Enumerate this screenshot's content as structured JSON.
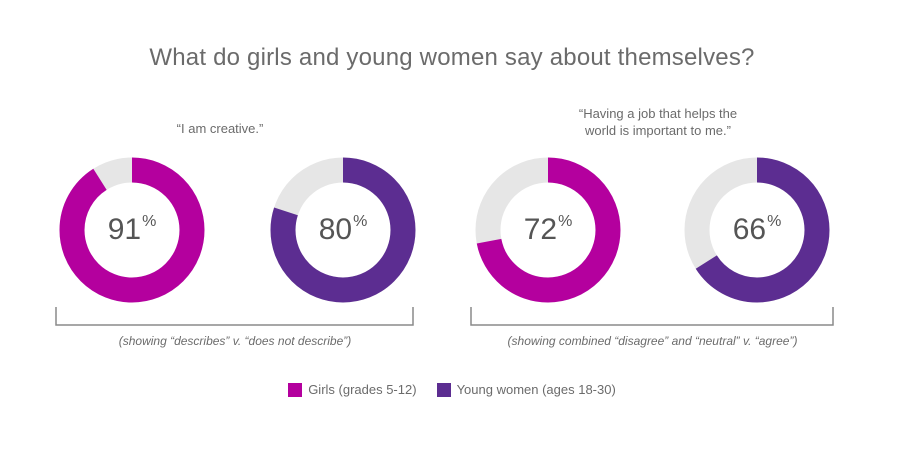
{
  "chart_data": {
    "type": "pie",
    "title": "What do girls and young women say about themselves?",
    "groups": [
      {
        "quote": "“I am creative.”",
        "note": "(showing “describes” v. “does not describe”)",
        "donuts": [
          {
            "series": "Girls (grades 5-12)",
            "value": 91,
            "label": "91",
            "color": "#b4009e"
          },
          {
            "series": "Young women (ages 18-30)",
            "value": 80,
            "label": "80",
            "color": "#5c2d91"
          }
        ]
      },
      {
        "quote_lines": [
          "“Having a job that helps the",
          "world is important to me.”"
        ],
        "note": "(showing combined “disagree” and “neutral” v. “agree”)",
        "donuts": [
          {
            "series": "Girls (grades 5-12)",
            "value": 72,
            "label": "72",
            "color": "#b4009e"
          },
          {
            "series": "Young women (ages 18-30)",
            "value": 66,
            "label": "66",
            "color": "#5c2d91"
          }
        ]
      }
    ],
    "percent_symbol": "%",
    "remainder_color": "#e6e6e6",
    "legend": [
      {
        "label": "Girls (grades 5-12)",
        "color": "#b4009e"
      },
      {
        "label": "Young women (ages 18-30)",
        "color": "#5c2d91"
      }
    ]
  }
}
